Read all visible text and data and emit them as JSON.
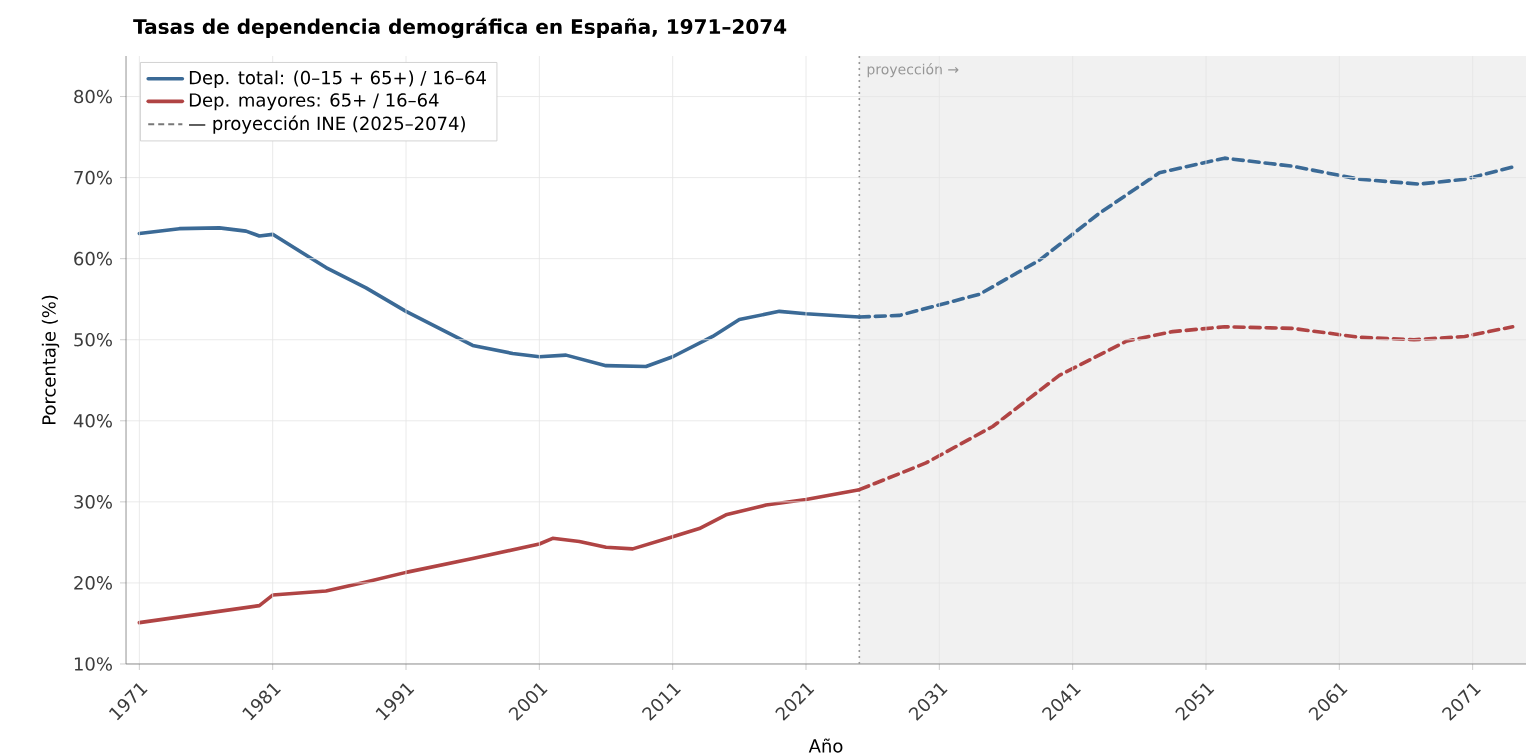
{
  "chart_data": {
    "type": "line",
    "title": "Tasas de dependencia demográfica en España, 1971–2074",
    "xlabel": "Año",
    "ylabel": "Porcentaje (%)",
    "xlim": [
      1970,
      2075
    ],
    "ylim": [
      10,
      85
    ],
    "xticks": [
      1971,
      1981,
      1991,
      2001,
      2011,
      2021,
      2031,
      2041,
      2051,
      2061,
      2071
    ],
    "yticks": [
      {
        "value": 10,
        "label": "10%"
      },
      {
        "value": 20,
        "label": "20%"
      },
      {
        "value": 30,
        "label": "30%"
      },
      {
        "value": 40,
        "label": "40%"
      },
      {
        "value": 50,
        "label": "50%"
      },
      {
        "value": 60,
        "label": "60%"
      },
      {
        "value": 70,
        "label": "70%"
      },
      {
        "value": 80,
        "label": "80%"
      }
    ],
    "grid": true,
    "legend": "top left",
    "series": [
      {
        "name": "Dep. total: (0–15 + 65+) / 16–64",
        "color": "#3b6a96",
        "line_style": "solid",
        "x": [
          1971,
          1974,
          1977,
          1979,
          1980,
          1981,
          1985,
          1988,
          1991,
          1996,
          1999,
          2001,
          2003,
          2006,
          2009,
          2011,
          2014,
          2016,
          2019,
          2021,
          2024,
          2025
        ],
        "values": [
          63.1,
          63.7,
          63.8,
          63.4,
          62.8,
          63.0,
          58.9,
          56.4,
          53.5,
          49.3,
          48.3,
          47.9,
          48.1,
          46.8,
          46.7,
          47.9,
          50.4,
          52.5,
          53.5,
          53.2,
          52.9,
          52.8
        ]
      },
      {
        "name": "Dep. mayores: 65+ / 16–64",
        "color": "#b04444",
        "line_style": "solid",
        "x": [
          1971,
          1980,
          1981,
          1985,
          1988,
          1991,
          1996,
          2001,
          2002,
          2004,
          2006,
          2008,
          2011,
          2013,
          2015,
          2018,
          2021,
          2025
        ],
        "values": [
          15.1,
          17.2,
          18.5,
          19.0,
          20.1,
          21.3,
          23.0,
          24.8,
          25.5,
          25.1,
          24.4,
          24.2,
          25.7,
          26.7,
          28.4,
          29.6,
          30.3,
          31.5
        ]
      },
      {
        "color": "#3b6a96",
        "line_style": "dashed",
        "x": [
          2025,
          2028,
          2034,
          2038.5,
          2043,
          2047.5,
          2052.4,
          2057.5,
          2062.5,
          2067,
          2070.4,
          2074
        ],
        "values": [
          52.8,
          53.0,
          55.6,
          59.8,
          65.6,
          70.6,
          72.4,
          71.4,
          69.8,
          69.2,
          69.8,
          71.3
        ]
      },
      {
        "color": "#b04444",
        "line_style": "dashed",
        "x": [
          2025,
          2030,
          2035,
          2040,
          2045,
          2048.5,
          2052.4,
          2057.5,
          2062.5,
          2066.6,
          2070.4,
          2074
        ],
        "values": [
          31.5,
          34.8,
          39.3,
          45.6,
          49.8,
          51.0,
          51.6,
          51.4,
          50.3,
          50.0,
          50.4,
          51.6
        ]
      }
    ],
    "ref_lines": [
      {
        "axis": "x",
        "value": 2025,
        "color": "#999999",
        "line_style": "dotted"
      }
    ],
    "annotations": [
      "— proyección INE (2025–2074)"
    ],
    "bands": [
      {
        "axis": "x",
        "from": 2025,
        "to": 2075,
        "label": "proyección →",
        "color": "#f1f1f1"
      }
    ]
  }
}
